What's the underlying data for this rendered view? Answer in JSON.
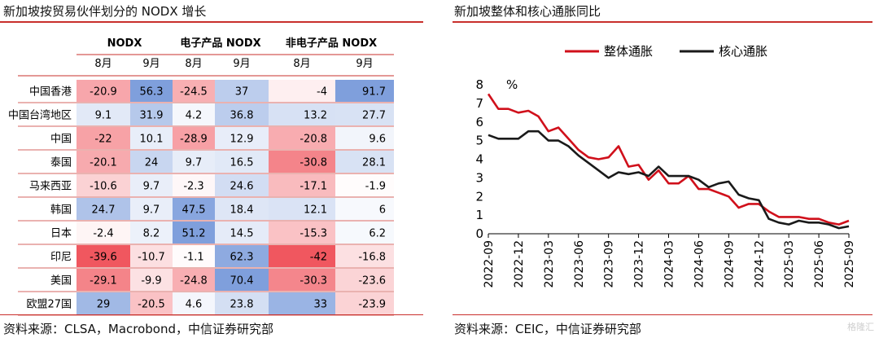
{
  "left_panel": {
    "title": "新加坡按贸易伙伴划分的 NODX 增长",
    "source": "资料来源：CLSA，Macrobond，中信证券研究部"
  },
  "right_panel": {
    "title": "新加坡整体和核心通胀同比",
    "source": "资料来源：CEIC，中信证券研究部"
  },
  "watermark": "格隆汇",
  "chart_data": [
    {
      "type": "heatmap",
      "title": "新加坡按贸易伙伴划分的 NODX 增长",
      "groups": [
        "NODX",
        "电子产品 NODX",
        "非电子产品 NODX"
      ],
      "columns": [
        "8月",
        "9月",
        "8月",
        "9月",
        "8月",
        "9月"
      ],
      "rows": [
        "中国香港",
        "中国台湾地区",
        "中国",
        "泰国",
        "马来西亚",
        "韩国",
        "日本",
        "印尼",
        "美国",
        "欧盟27国"
      ],
      "values": [
        [
          -20.9,
          56.3,
          -24.5,
          37,
          -4,
          91.7
        ],
        [
          9.1,
          31.9,
          4.2,
          36.8,
          13.2,
          27.7
        ],
        [
          -22,
          10.1,
          -28.9,
          12.9,
          -20.8,
          9.6
        ],
        [
          -20.1,
          24,
          9.7,
          16.5,
          -30.8,
          28.1
        ],
        [
          -10.6,
          9.7,
          -2.3,
          24.6,
          -17.1,
          -1.9
        ],
        [
          24.7,
          9.7,
          47.5,
          18.4,
          12.1,
          6
        ],
        [
          -2.4,
          8.2,
          51.2,
          14.5,
          -15.3,
          6.2
        ],
        [
          -39.6,
          -10.7,
          -1.1,
          62.3,
          -42,
          -16.8
        ],
        [
          -29.1,
          -9.9,
          -24.8,
          70.4,
          -30.3,
          -23.6
        ],
        [
          29,
          -20.5,
          4.6,
          23.8,
          33,
          -23.9
        ]
      ],
      "colors": {
        "negative": "#f0575f",
        "positive": "#7f9fdc",
        "neutral": "#ffffff"
      }
    },
    {
      "type": "line",
      "title": "新加坡整体和核心通胀同比",
      "unit": "%",
      "ylim": [
        0,
        8
      ],
      "yticks": [
        0,
        1,
        2,
        3,
        4,
        5,
        6,
        7,
        8
      ],
      "xticks": [
        "2022-09",
        "2022-12",
        "2023-03",
        "2023-06",
        "2023-09",
        "2023-12",
        "2024-03",
        "2024-06",
        "2024-09",
        "2024-12",
        "2025-03",
        "2025-06",
        "2025-09"
      ],
      "x": [
        "2022-09",
        "2022-10",
        "2022-11",
        "2022-12",
        "2023-01",
        "2023-02",
        "2023-03",
        "2023-04",
        "2023-05",
        "2023-06",
        "2023-07",
        "2023-08",
        "2023-09",
        "2023-10",
        "2023-11",
        "2023-12",
        "2024-01",
        "2024-02",
        "2024-03",
        "2024-04",
        "2024-05",
        "2024-06",
        "2024-07",
        "2024-08",
        "2024-09",
        "2024-10",
        "2024-11",
        "2024-12",
        "2025-01",
        "2025-02",
        "2025-03",
        "2025-04",
        "2025-05",
        "2025-06",
        "2025-07",
        "2025-08",
        "2025-09"
      ],
      "legend_position": "top",
      "series": [
        {
          "name": "整体通胀",
          "color": "#d0101b",
          "values": [
            7.5,
            6.7,
            6.7,
            6.5,
            6.6,
            6.3,
            5.5,
            5.7,
            5.1,
            4.5,
            4.1,
            4.0,
            4.1,
            4.7,
            3.6,
            3.7,
            2.9,
            3.4,
            2.7,
            2.7,
            3.1,
            2.4,
            2.4,
            2.2,
            2.0,
            1.4,
            1.6,
            1.6,
            1.2,
            0.9,
            0.9,
            0.9,
            0.8,
            0.8,
            0.6,
            0.5,
            0.7
          ]
        },
        {
          "name": "核心通胀",
          "color": "#1a1a1a",
          "values": [
            5.3,
            5.1,
            5.1,
            5.1,
            5.5,
            5.5,
            5.0,
            5.0,
            4.7,
            4.2,
            3.8,
            3.4,
            3.0,
            3.3,
            3.2,
            3.3,
            3.1,
            3.6,
            3.1,
            3.1,
            3.1,
            2.9,
            2.5,
            2.7,
            2.8,
            2.1,
            1.9,
            1.8,
            0.8,
            0.6,
            0.5,
            0.7,
            0.6,
            0.6,
            0.5,
            0.3,
            0.4
          ]
        }
      ]
    }
  ]
}
